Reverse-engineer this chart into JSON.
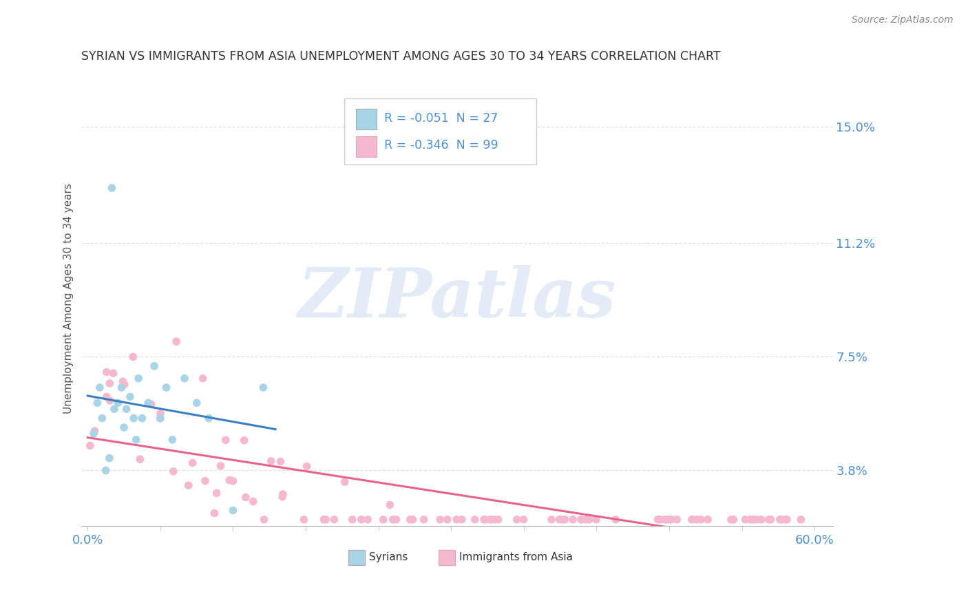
{
  "title": "SYRIAN VS IMMIGRANTS FROM ASIA UNEMPLOYMENT AMONG AGES 30 TO 34 YEARS CORRELATION CHART",
  "source": "Source: ZipAtlas.com",
  "ylabel": "Unemployment Among Ages 30 to 34 years",
  "xlim": [
    -0.005,
    0.615
  ],
  "ylim": [
    0.02,
    0.168
  ],
  "yticks": [
    0.038,
    0.075,
    0.112,
    0.15
  ],
  "ytick_labels": [
    "3.8%",
    "7.5%",
    "11.2%",
    "15.0%"
  ],
  "xticks": [
    0.0,
    0.06,
    0.12,
    0.18,
    0.24,
    0.3,
    0.36,
    0.42,
    0.48,
    0.54,
    0.6
  ],
  "syrian_color": "#a8d4e8",
  "asian_color": "#f5b8ce",
  "syrian_line_color": "#3a7fc1",
  "asian_line_color": "#e8638a",
  "dashed_line_color": "#b0b0b0",
  "syrian_R": -0.051,
  "syrian_N": 27,
  "asian_R": -0.346,
  "asian_N": 99,
  "axis_tick_color": "#4a90d9",
  "grid_color": "#e0e0e0",
  "title_color": "#333333",
  "source_color": "#888888",
  "ylabel_color": "#555555",
  "legend_text_color": "#4a90d9",
  "watermark_color": "#dde8f5"
}
